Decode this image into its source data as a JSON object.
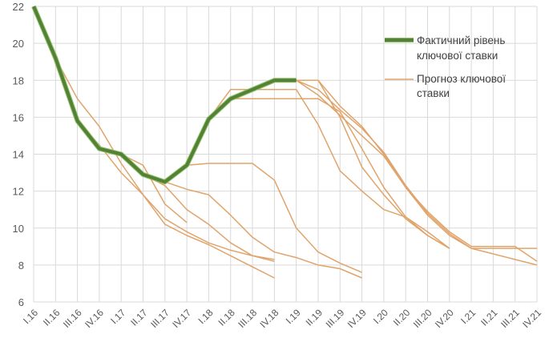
{
  "chart_data": {
    "type": "line",
    "categories": [
      "I.16",
      "II.16",
      "III.16",
      "IV.16",
      "I.17",
      "II.17",
      "III.17",
      "IV.17",
      "I.18",
      "II.18",
      "III.18",
      "IV.18",
      "I.19",
      "II.19",
      "III.19",
      "IV.19",
      "I.20",
      "II.20",
      "III.20",
      "IV.20",
      "I.21",
      "II.21",
      "III.21",
      "IV.21"
    ],
    "ylim": [
      6,
      22
    ],
    "yticks": [
      6,
      8,
      10,
      12,
      14,
      16,
      18,
      20,
      22
    ],
    "grid": "vertical-and-horizontal",
    "legend_position": "top-right",
    "colors": {
      "actual": "#548235",
      "actual_outline": "#8fbf6a",
      "forecast": "#e0a46b",
      "grid": "#d9d9d9",
      "text": "#595959"
    },
    "legend": [
      {
        "label_line1": "Фактичний рівень",
        "label_line2": "ключової ставки",
        "style": "actual"
      },
      {
        "label_line1": "Прогноз ключової",
        "label_line2": "ставки",
        "style": "forecast"
      }
    ],
    "actual": [
      [
        0,
        22
      ],
      [
        1,
        19.2
      ],
      [
        2,
        15.8
      ],
      [
        3,
        14.3
      ],
      [
        4,
        14.0
      ],
      [
        5,
        12.9
      ],
      [
        6,
        12.5
      ],
      [
        7,
        13.4
      ],
      [
        8,
        15.9
      ],
      [
        9,
        17.0
      ],
      [
        10,
        17.5
      ],
      [
        11,
        18.0
      ],
      [
        12,
        18.0
      ]
    ],
    "forecasts": [
      [
        [
          1,
          19.2
        ],
        [
          2,
          17.0
        ],
        [
          3,
          15.5
        ],
        [
          4,
          13.5
        ],
        [
          5,
          11.8
        ],
        [
          6,
          10.2
        ],
        [
          7,
          9.6
        ],
        [
          8,
          9.1
        ],
        [
          9,
          8.5
        ],
        [
          10,
          7.9
        ],
        [
          11,
          7.3
        ]
      ],
      [
        [
          2,
          15.8
        ],
        [
          3,
          14.5
        ],
        [
          4,
          13.0
        ],
        [
          5,
          11.8
        ],
        [
          6,
          10.5
        ],
        [
          7,
          9.8
        ],
        [
          8,
          9.2
        ],
        [
          9,
          8.8
        ],
        [
          10,
          8.5
        ],
        [
          11,
          8.3
        ]
      ],
      [
        [
          3,
          14.3
        ],
        [
          4,
          14.0
        ],
        [
          5,
          13.4
        ],
        [
          6,
          11.3
        ],
        [
          7,
          10.3
        ]
      ],
      [
        [
          4,
          14.0
        ],
        [
          5,
          12.9
        ],
        [
          6,
          12.3
        ],
        [
          7,
          11.0
        ],
        [
          8,
          10.2
        ],
        [
          9,
          9.2
        ],
        [
          10,
          8.5
        ],
        [
          11,
          8.2
        ]
      ],
      [
        [
          6,
          12.5
        ],
        [
          7,
          12.1
        ],
        [
          8,
          11.8
        ],
        [
          9,
          10.7
        ],
        [
          10,
          9.5
        ],
        [
          11,
          8.7
        ],
        [
          12,
          8.4
        ],
        [
          13,
          8.0
        ],
        [
          14,
          7.8
        ],
        [
          15,
          7.3
        ]
      ],
      [
        [
          7,
          13.4
        ],
        [
          8,
          13.5
        ],
        [
          9,
          13.5
        ],
        [
          10,
          13.5
        ],
        [
          11,
          12.6
        ],
        [
          12,
          10.0
        ],
        [
          13,
          8.7
        ],
        [
          14,
          8.1
        ],
        [
          15,
          7.6
        ]
      ],
      [
        [
          8,
          15.9
        ],
        [
          9,
          17.0
        ],
        [
          10,
          17.0
        ],
        [
          11,
          17.0
        ],
        [
          12,
          17.0
        ],
        [
          13,
          17.0
        ],
        [
          14,
          16.3
        ],
        [
          15,
          14.3
        ],
        [
          16,
          12.2
        ],
        [
          17,
          10.6
        ],
        [
          18,
          9.6
        ],
        [
          19,
          8.9
        ]
      ],
      [
        [
          8,
          15.9
        ],
        [
          9,
          17.5
        ],
        [
          10,
          17.5
        ],
        [
          11,
          17.5
        ],
        [
          12,
          17.5
        ],
        [
          13,
          15.6
        ],
        [
          14,
          13.1
        ],
        [
          15,
          12.0
        ],
        [
          16,
          11.0
        ],
        [
          17,
          10.6
        ],
        [
          18,
          9.8
        ],
        [
          19,
          8.9
        ]
      ],
      [
        [
          10,
          17.5
        ],
        [
          11,
          18.0
        ],
        [
          12,
          18.0
        ],
        [
          13,
          18.0
        ],
        [
          14,
          16.0
        ],
        [
          15,
          13.3
        ],
        [
          16,
          11.8
        ],
        [
          17,
          10.5
        ],
        [
          18,
          9.6
        ],
        [
          19,
          8.9
        ]
      ],
      [
        [
          11,
          18.0
        ],
        [
          12,
          18.0
        ],
        [
          13,
          17.2
        ],
        [
          14,
          16.1
        ],
        [
          15,
          15.0
        ],
        [
          16,
          13.9
        ],
        [
          17,
          12.2
        ],
        [
          18,
          10.7
        ],
        [
          19,
          9.6
        ],
        [
          20,
          8.9
        ],
        [
          21,
          8.9
        ],
        [
          22,
          8.9
        ],
        [
          23,
          8.9
        ]
      ],
      [
        [
          12,
          18.0
        ],
        [
          13,
          17.5
        ],
        [
          14,
          16.4
        ],
        [
          15,
          15.4
        ],
        [
          16,
          14.1
        ],
        [
          17,
          12.3
        ],
        [
          18,
          10.8
        ],
        [
          19,
          9.7
        ],
        [
          20,
          8.9
        ],
        [
          21,
          8.6
        ],
        [
          22,
          8.3
        ],
        [
          23,
          8.0
        ]
      ],
      [
        [
          13,
          18.0
        ],
        [
          14,
          16.6
        ],
        [
          15,
          15.5
        ],
        [
          16,
          14.0
        ],
        [
          17,
          12.2
        ],
        [
          18,
          10.9
        ],
        [
          19,
          9.8
        ],
        [
          20,
          9.0
        ],
        [
          21,
          9.0
        ],
        [
          22,
          9.0
        ],
        [
          23,
          8.2
        ]
      ]
    ]
  }
}
